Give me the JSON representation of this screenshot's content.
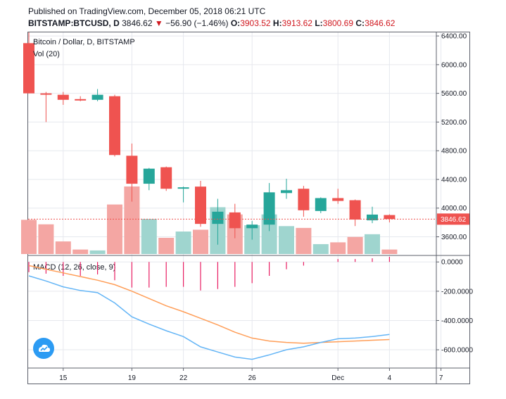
{
  "header": {
    "published": "Published on TradingView.com, December 05, 2018 06:21 UTC",
    "symbol": "BITSTAMP:BTCUSD, D",
    "last": "3846.62",
    "change_arrow": "▼",
    "change": "−56.90 (−1.46%)",
    "o_label": "O:",
    "o_value": "3903.52",
    "h_label": "H:",
    "h_value": "3913.62",
    "l_label": "L:",
    "l_value": "3800.69",
    "c_label": "C:",
    "c_value": "3846.62"
  },
  "colors": {
    "up": "#26a69a",
    "down": "#ef5350",
    "vol_up": "#9fd5cf",
    "vol_down": "#f4a6a3",
    "macd": "#64b5f6",
    "signal": "#ff9e58",
    "hist": "#e91e63",
    "grid": "#e6e8ee",
    "price_line": "#ef5350"
  },
  "chart_data": [
    {
      "type": "candlestick",
      "title": "Bitcoin / Dollar, D, BITSTAMP",
      "volume_label": "Vol (20)",
      "y_ticks": [
        "6400.00",
        "6000.00",
        "5600.00",
        "5200.00",
        "4800.00",
        "4400.00",
        "4000.00",
        "3600.00"
      ],
      "ylim": [
        3350,
        6450
      ],
      "x_ticks": [
        {
          "label": "15",
          "day": 15
        },
        {
          "label": "19",
          "day": 19
        },
        {
          "label": "22",
          "day": 22
        },
        {
          "label": "26",
          "day": 26
        },
        {
          "label": "Dec",
          "day": 31
        },
        {
          "label": "4",
          "day": 34
        },
        {
          "label": "7",
          "day": 37
        }
      ],
      "last_price": 3846.62,
      "last_price_label": "3846.62",
      "candles": [
        {
          "day": 13,
          "o": 6300,
          "h": 6450,
          "l": 5600,
          "c": 5600,
          "v": 0.38
        },
        {
          "day": 14,
          "o": 5600,
          "h": 5620,
          "l": 5200,
          "c": 5590,
          "v": 0.33
        },
        {
          "day": 15,
          "o": 5580,
          "h": 5620,
          "l": 5440,
          "c": 5510,
          "v": 0.14
        },
        {
          "day": 16,
          "o": 5520,
          "h": 5560,
          "l": 5490,
          "c": 5500,
          "v": 0.05
        },
        {
          "day": 17,
          "o": 5510,
          "h": 5660,
          "l": 5490,
          "c": 5580,
          "v": 0.04
        },
        {
          "day": 18,
          "o": 5560,
          "h": 5580,
          "l": 4720,
          "c": 4740,
          "v": 0.55
        },
        {
          "day": 19,
          "o": 4730,
          "h": 4900,
          "l": 4090,
          "c": 4340,
          "v": 0.75
        },
        {
          "day": 20,
          "o": 4340,
          "h": 4560,
          "l": 4250,
          "c": 4550,
          "v": 0.39
        },
        {
          "day": 21,
          "o": 4570,
          "h": 4580,
          "l": 4240,
          "c": 4270,
          "v": 0.18
        },
        {
          "day": 22,
          "o": 4280,
          "h": 4300,
          "l": 4080,
          "c": 4290,
          "v": 0.25
        },
        {
          "day": 23,
          "o": 4300,
          "h": 4380,
          "l": 3740,
          "c": 3780,
          "v": 0.27
        },
        {
          "day": 24,
          "o": 3780,
          "h": 4130,
          "l": 3490,
          "c": 3950,
          "v": 0.52
        },
        {
          "day": 25,
          "o": 3940,
          "h": 4060,
          "l": 3580,
          "c": 3720,
          "v": 0.44
        },
        {
          "day": 26,
          "o": 3720,
          "h": 3820,
          "l": 3560,
          "c": 3770,
          "v": 0.32
        },
        {
          "day": 27,
          "o": 3770,
          "h": 4350,
          "l": 3680,
          "c": 4220,
          "v": 0.44
        },
        {
          "day": 28,
          "o": 4210,
          "h": 4410,
          "l": 4130,
          "c": 4250,
          "v": 0.31
        },
        {
          "day": 29,
          "o": 4270,
          "h": 4310,
          "l": 3880,
          "c": 3970,
          "v": 0.29
        },
        {
          "day": 30,
          "o": 3960,
          "h": 4150,
          "l": 3930,
          "c": 4140,
          "v": 0.11
        },
        {
          "day": 31,
          "o": 4140,
          "h": 4270,
          "l": 4060,
          "c": 4100,
          "v": 0.13
        },
        {
          "day": 32,
          "o": 4110,
          "h": 4120,
          "l": 3750,
          "c": 3840,
          "v": 0.19
        },
        {
          "day": 33,
          "o": 3830,
          "h": 4020,
          "l": 3790,
          "c": 3910,
          "v": 0.22
        },
        {
          "day": 34,
          "o": 3903.52,
          "h": 3913.62,
          "l": 3800.69,
          "c": 3846.62,
          "v": 0.05
        }
      ]
    },
    {
      "type": "line",
      "title": "MACD (12, 26, close, 9)",
      "y_ticks": [
        "0.0000",
        "-200.0000",
        "-400.0000",
        "-600.0000"
      ],
      "ylim": [
        -720,
        30
      ],
      "series": [
        {
          "name": "MACD",
          "values": [
            {
              "day": 13,
              "v": -95
            },
            {
              "day": 14,
              "v": -130
            },
            {
              "day": 15,
              "v": -170
            },
            {
              "day": 16,
              "v": -195
            },
            {
              "day": 17,
              "v": -210
            },
            {
              "day": 18,
              "v": -280
            },
            {
              "day": 19,
              "v": -375
            },
            {
              "day": 20,
              "v": -425
            },
            {
              "day": 21,
              "v": -470
            },
            {
              "day": 22,
              "v": -510
            },
            {
              "day": 23,
              "v": -580
            },
            {
              "day": 24,
              "v": -615
            },
            {
              "day": 25,
              "v": -650
            },
            {
              "day": 26,
              "v": -665
            },
            {
              "day": 27,
              "v": -635
            },
            {
              "day": 28,
              "v": -600
            },
            {
              "day": 29,
              "v": -580
            },
            {
              "day": 30,
              "v": -550
            },
            {
              "day": 31,
              "v": -525
            },
            {
              "day": 32,
              "v": -520
            },
            {
              "day": 33,
              "v": -510
            },
            {
              "day": 34,
              "v": -495
            }
          ]
        },
        {
          "name": "Signal",
          "values": [
            {
              "day": 13,
              "v": -25
            },
            {
              "day": 14,
              "v": -50
            },
            {
              "day": 15,
              "v": -75
            },
            {
              "day": 16,
              "v": -100
            },
            {
              "day": 17,
              "v": -125
            },
            {
              "day": 18,
              "v": -155
            },
            {
              "day": 19,
              "v": -200
            },
            {
              "day": 20,
              "v": -250
            },
            {
              "day": 21,
              "v": -300
            },
            {
              "day": 22,
              "v": -340
            },
            {
              "day": 23,
              "v": -385
            },
            {
              "day": 24,
              "v": -430
            },
            {
              "day": 25,
              "v": -480
            },
            {
              "day": 26,
              "v": -520
            },
            {
              "day": 27,
              "v": -540
            },
            {
              "day": 28,
              "v": -550
            },
            {
              "day": 29,
              "v": -555
            },
            {
              "day": 30,
              "v": -550
            },
            {
              "day": 31,
              "v": -545
            },
            {
              "day": 32,
              "v": -540
            },
            {
              "day": 33,
              "v": -535
            },
            {
              "day": 34,
              "v": -530
            }
          ]
        },
        {
          "name": "Histogram",
          "values": [
            {
              "day": 13,
              "v": -70
            },
            {
              "day": 14,
              "v": -80
            },
            {
              "day": 15,
              "v": -95
            },
            {
              "day": 16,
              "v": -95
            },
            {
              "day": 17,
              "v": -85
            },
            {
              "day": 18,
              "v": -125
            },
            {
              "day": 19,
              "v": -175
            },
            {
              "day": 20,
              "v": -175
            },
            {
              "day": 21,
              "v": -170
            },
            {
              "day": 22,
              "v": -170
            },
            {
              "day": 23,
              "v": -195
            },
            {
              "day": 24,
              "v": -185
            },
            {
              "day": 25,
              "v": -170
            },
            {
              "day": 26,
              "v": -145
            },
            {
              "day": 27,
              "v": -95
            },
            {
              "day": 28,
              "v": -50
            },
            {
              "day": 29,
              "v": -25
            },
            {
              "day": 30,
              "v": 0
            },
            {
              "day": 31,
              "v": 20
            },
            {
              "day": 32,
              "v": 20
            },
            {
              "day": 33,
              "v": 25
            },
            {
              "day": 34,
              "v": 35
            }
          ]
        }
      ]
    }
  ]
}
